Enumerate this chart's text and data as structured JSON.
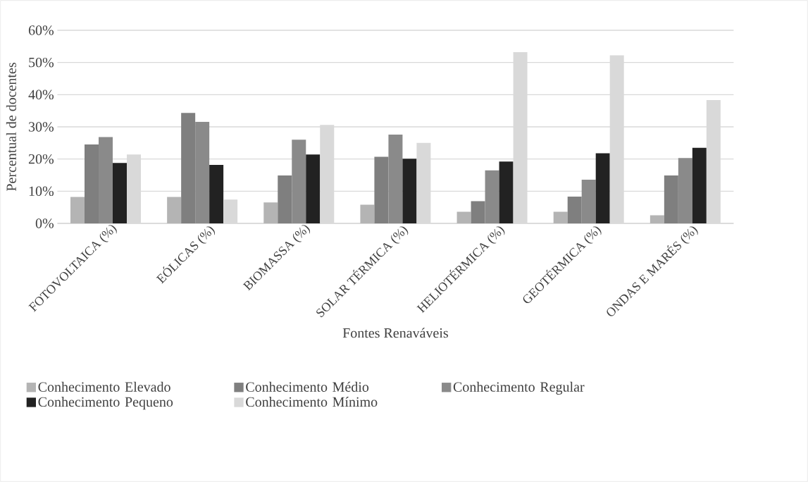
{
  "chart_data": {
    "type": "bar",
    "xlabel": "Fontes Renaváveis",
    "ylabel": "Percentual de docentes",
    "categories": [
      "FOTOVOLTAICA (%)",
      "EÓLICAS (%)",
      "BIOMASSA (%)",
      "SOLAR TÉRMICA (%)",
      "HELIOTÉRMICA (%)",
      "GEOTÉRMICA (%)",
      "ONDAS E MARÉS (%)"
    ],
    "series": [
      {
        "name": "Conhecimento Elevado",
        "color": "#b4b4b4",
        "values": [
          8.2,
          8.2,
          6.5,
          5.8,
          3.6,
          3.6,
          2.5
        ]
      },
      {
        "name": "Conhecimento Médio",
        "color": "#7f7f7f",
        "values": [
          24.5,
          34.3,
          14.9,
          20.7,
          6.9,
          8.3,
          14.9
        ]
      },
      {
        "name": "Conhecimento Regular",
        "color": "#8a8a8a",
        "values": [
          26.8,
          31.6,
          26.0,
          27.6,
          16.5,
          13.6,
          20.3
        ]
      },
      {
        "name": "Conhecimento Pequeno",
        "color": "#222222",
        "values": [
          18.8,
          18.2,
          21.4,
          20.1,
          19.2,
          21.8,
          23.5
        ]
      },
      {
        "name": "Conhecimento Mínimo",
        "color": "#d9d9d9",
        "values": [
          21.4,
          7.4,
          30.6,
          25.0,
          53.2,
          52.2,
          38.3
        ]
      }
    ],
    "ylim": [
      0,
      60
    ],
    "yticks": [
      {
        "value": 0,
        "label": "0%"
      },
      {
        "value": 10,
        "label": "10%"
      },
      {
        "value": 20,
        "label": "20%"
      },
      {
        "value": 30,
        "label": "30%"
      },
      {
        "value": 40,
        "label": "40%"
      },
      {
        "value": 50,
        "label": "50%"
      },
      {
        "value": 60,
        "label": "60%"
      }
    ],
    "grid": "y",
    "legend": "bottom"
  }
}
